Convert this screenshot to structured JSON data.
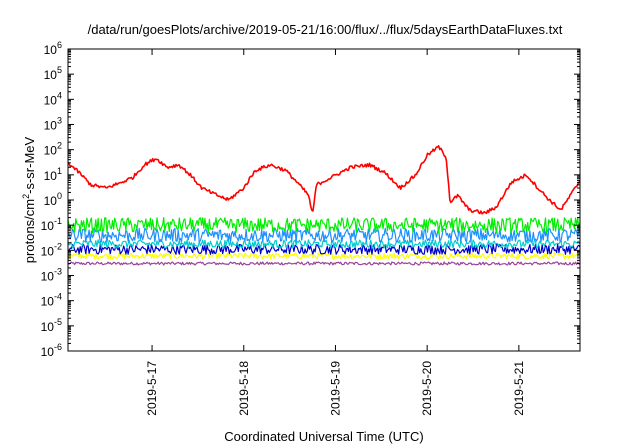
{
  "chart_data": {
    "type": "line",
    "title": "/data/run/goesPlots/archive/2019-05-21/16:00/flux/../flux/5daysEarthDataFluxes.txt",
    "xlabel": "Coordinated Universal Time (UTC)",
    "ylabel": {
      "pre": "protons/cm",
      "sup": "2",
      "post": "-s-sr-MeV"
    },
    "y_scale": "log",
    "ylim_exp": [
      -6,
      6
    ],
    "y_tick_base": "10",
    "y_tick_exponents": [
      "-6",
      "-5",
      "-4",
      "-3",
      "-2",
      "-1",
      "0",
      "1",
      "2",
      "3",
      "4",
      "5",
      "6"
    ],
    "xlim": [
      "2019-05-16 02:00",
      "2019-05-21 16:00"
    ],
    "x_ticks": [
      {
        "label": "2019-5-17",
        "at": "2019-05-17 00:00"
      },
      {
        "label": "2019-5-18",
        "at": "2019-05-18 00:00"
      },
      {
        "label": "2019-5-19",
        "at": "2019-05-19 00:00"
      },
      {
        "label": "2019-5-20",
        "at": "2019-05-20 00:00"
      },
      {
        "label": "2019-5-21",
        "at": "2019-05-21 00:00"
      }
    ],
    "grid": false,
    "legend": "none",
    "series": [
      {
        "color": "#ff0000",
        "noise": 0.07,
        "points": [
          [
            "2019-05-16 02:00",
            30
          ],
          [
            "2019-05-16 05:00",
            12
          ],
          [
            "2019-05-16 08:00",
            4
          ],
          [
            "2019-05-16 12:00",
            3
          ],
          [
            "2019-05-16 16:00",
            5
          ],
          [
            "2019-05-16 19:00",
            8
          ],
          [
            "2019-05-16 22:00",
            25
          ],
          [
            "2019-05-17 01:00",
            45
          ],
          [
            "2019-05-17 04:00",
            20
          ],
          [
            "2019-05-17 07:00",
            25
          ],
          [
            "2019-05-17 10:00",
            10
          ],
          [
            "2019-05-17 13:00",
            3
          ],
          [
            "2019-05-17 16:00",
            1.8
          ],
          [
            "2019-05-17 20:00",
            1
          ],
          [
            "2019-05-18 00:00",
            3
          ],
          [
            "2019-05-18 03:00",
            15
          ],
          [
            "2019-05-18 07:00",
            25
          ],
          [
            "2019-05-18 11:00",
            15
          ],
          [
            "2019-05-18 14:00",
            5
          ],
          [
            "2019-05-18 17:00",
            1.5
          ],
          [
            "2019-05-18 18:00",
            0.25
          ],
          [
            "2019-05-18 19:00",
            4
          ],
          [
            "2019-05-18 23:00",
            8
          ],
          [
            "2019-05-19 04:00",
            20
          ],
          [
            "2019-05-19 09:00",
            25
          ],
          [
            "2019-05-19 13:00",
            12
          ],
          [
            "2019-05-19 17:00",
            3
          ],
          [
            "2019-05-19 21:00",
            10
          ],
          [
            "2019-05-20 00:00",
            60
          ],
          [
            "2019-05-20 03:00",
            130
          ],
          [
            "2019-05-20 05:00",
            50
          ],
          [
            "2019-05-20 06:00",
            0.8
          ],
          [
            "2019-05-20 08:00",
            1.5
          ],
          [
            "2019-05-20 11:00",
            0.4
          ],
          [
            "2019-05-20 15:00",
            0.3
          ],
          [
            "2019-05-20 18:00",
            0.5
          ],
          [
            "2019-05-20 22:00",
            5
          ],
          [
            "2019-05-21 02:00",
            10
          ],
          [
            "2019-05-21 05:00",
            3
          ],
          [
            "2019-05-21 08:00",
            1
          ],
          [
            "2019-05-21 11:00",
            0.4
          ],
          [
            "2019-05-21 14:00",
            2
          ],
          [
            "2019-05-21 16:00",
            6
          ]
        ]
      },
      {
        "color": "#00ee00",
        "noise": 0.3,
        "points": [
          [
            "2019-05-16 02:00",
            0.1
          ],
          [
            "2019-05-21 16:00",
            0.1
          ]
        ]
      },
      {
        "color": "#1e90ff",
        "noise": 0.28,
        "points": [
          [
            "2019-05-16 02:00",
            0.04
          ],
          [
            "2019-05-21 16:00",
            0.04
          ]
        ]
      },
      {
        "color": "#00cdcd",
        "noise": 0.16,
        "points": [
          [
            "2019-05-16 02:00",
            0.018
          ],
          [
            "2019-05-21 16:00",
            0.018
          ]
        ]
      },
      {
        "color": "#0000cd",
        "noise": 0.2,
        "points": [
          [
            "2019-05-16 02:00",
            0.011
          ],
          [
            "2019-05-21 16:00",
            0.011
          ]
        ]
      },
      {
        "color": "#ffff00",
        "noise": 0.12,
        "points": [
          [
            "2019-05-16 02:00",
            0.006
          ],
          [
            "2019-05-21 16:00",
            0.006
          ]
        ]
      },
      {
        "color": "#994499",
        "noise": 0.06,
        "points": [
          [
            "2019-05-16 02:00",
            0.003
          ],
          [
            "2019-05-21 16:00",
            0.003
          ]
        ]
      }
    ]
  }
}
